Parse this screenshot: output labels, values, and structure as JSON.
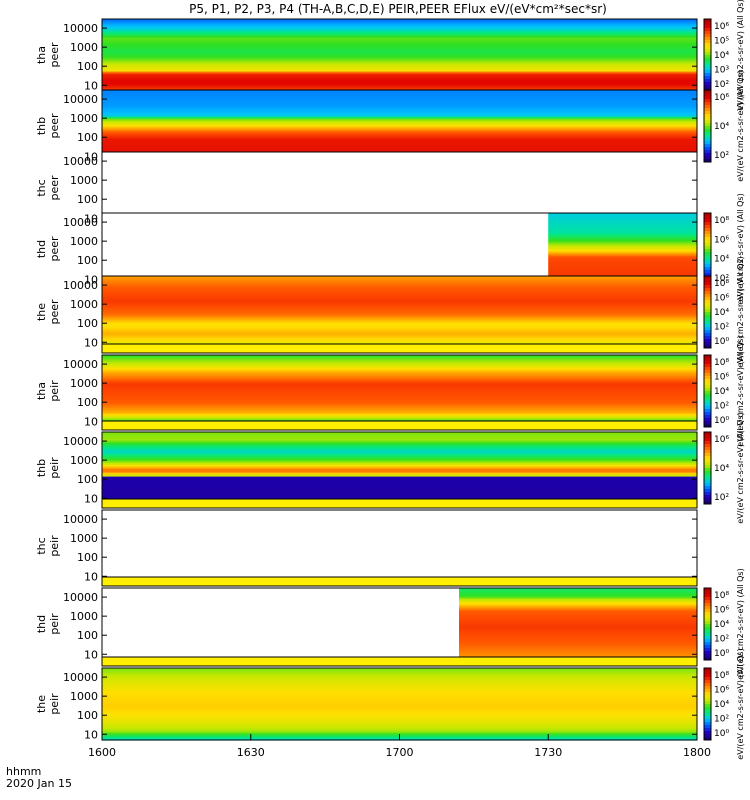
{
  "chart_data": {
    "type": "heatmap",
    "title": "P5, P1, P2, P3, P4 (TH-A,B,C,D,E) PEIR,PEER EFlux eV/(eV*cm²*sec*sr)",
    "x_axis": {
      "ticks": [
        "1600",
        "1630",
        "1700",
        "1730",
        "1800"
      ],
      "range": [
        "1600",
        "1800"
      ],
      "label_line1": "hhmm",
      "label_line2": "2020 Jan 15"
    },
    "y_axis": {
      "scale": "log",
      "range": [
        5,
        30000
      ],
      "ticks": [
        "10",
        "100",
        "1000",
        "10000"
      ]
    },
    "panels": [
      {
        "label_top": "tha",
        "label_bottom": "peer",
        "has_data": true,
        "data_start": 0.0,
        "yellow_band": false,
        "colorbar": {
          "ticks": [
            "10⁶",
            "10⁵",
            "10⁴",
            "10³",
            "10²"
          ],
          "label": "eV/(eV cm2-s-sr-eV) (All Qs)"
        },
        "profile": [
          [
            5,
            0.82
          ],
          [
            12,
            0.9
          ],
          [
            20,
            0.9
          ],
          [
            45,
            0.86
          ],
          [
            60,
            0.62
          ],
          [
            140,
            0.55
          ],
          [
            300,
            0.46
          ],
          [
            600,
            0.42
          ],
          [
            3000,
            0.48
          ],
          [
            10000,
            0.3
          ],
          [
            30000,
            0.2
          ]
        ]
      },
      {
        "label_top": "thb",
        "label_bottom": "peer",
        "has_data": true,
        "data_start": 0.0,
        "yellow_band": false,
        "colorbar": {
          "ticks": [
            "10⁶",
            "10⁴",
            "10²"
          ],
          "label": "eV/(eV cm2-s-sr-eV) (All Qs)"
        },
        "profile": [
          [
            5,
            0.9
          ],
          [
            80,
            0.88
          ],
          [
            200,
            0.8
          ],
          [
            450,
            0.62
          ],
          [
            900,
            0.5
          ],
          [
            1500,
            0.28
          ],
          [
            5000,
            0.24
          ],
          [
            30000,
            0.22
          ]
        ]
      },
      {
        "label_top": "thc",
        "label_bottom": "peer",
        "has_data": false,
        "data_start": 1.0,
        "yellow_band": false,
        "colorbar": null,
        "profile": []
      },
      {
        "label_top": "thd",
        "label_bottom": "peer",
        "has_data": true,
        "data_start": 0.75,
        "yellow_band": false,
        "colorbar": {
          "ticks": [
            "10⁸",
            "10⁶",
            "10⁴",
            "10²"
          ],
          "label": "eV/(eV cm2-s-sr-eV) (All Qs)"
        },
        "profile": [
          [
            5,
            0.85
          ],
          [
            150,
            0.82
          ],
          [
            400,
            0.6
          ],
          [
            1200,
            0.45
          ],
          [
            3000,
            0.35
          ],
          [
            30000,
            0.3
          ]
        ]
      },
      {
        "label_top": "the",
        "label_bottom": "peer",
        "has_data": true,
        "data_start": 0.0,
        "yellow_band": false,
        "colorbar": {
          "ticks": [
            "10⁸",
            "10⁶",
            "10⁴",
            "10²",
            "10⁰"
          ],
          "label": "eV/(eV cm2-s-sr-eV) (All Qs)"
        },
        "profile": [
          [
            5,
            0.55
          ],
          [
            30,
            0.7
          ],
          [
            90,
            0.62
          ],
          [
            300,
            0.78
          ],
          [
            1500,
            0.84
          ],
          [
            8000,
            0.8
          ],
          [
            30000,
            0.72
          ]
        ]
      },
      {
        "label_top": "tha",
        "label_bottom": "peir",
        "has_data": true,
        "data_start": 0.0,
        "yellow_band": true,
        "colorbar": {
          "ticks": [
            "10⁸",
            "10⁶",
            "10⁴",
            "10²",
            "10⁰"
          ],
          "label": "eV/(eV cm2-s-sr-eV) (All Qs)"
        },
        "profile": [
          [
            5,
            0.3
          ],
          [
            12,
            0.48
          ],
          [
            30,
            0.7
          ],
          [
            100,
            0.8
          ],
          [
            1000,
            0.84
          ],
          [
            4000,
            0.7
          ],
          [
            10000,
            0.56
          ],
          [
            30000,
            0.45
          ]
        ]
      },
      {
        "label_top": "thb",
        "label_bottom": "peir",
        "has_data": true,
        "data_start": 0.0,
        "yellow_band": true,
        "colorbar": {
          "ticks": [
            "10⁶",
            "10⁴",
            "10²"
          ],
          "label": "eV/(eV cm2-s-sr-eV) (All Qs)"
        },
        "profile": [
          [
            5,
            0.05
          ],
          [
            130,
            0.06
          ],
          [
            160,
            0.55
          ],
          [
            300,
            0.8
          ],
          [
            700,
            0.55
          ],
          [
            1200,
            0.45
          ],
          [
            3000,
            0.32
          ],
          [
            6000,
            0.4
          ],
          [
            12000,
            0.52
          ],
          [
            30000,
            0.5
          ]
        ]
      },
      {
        "label_top": "thc",
        "label_bottom": "peir",
        "has_data": false,
        "data_start": 1.0,
        "yellow_band": true,
        "colorbar": null,
        "profile": []
      },
      {
        "label_top": "thd",
        "label_bottom": "peir",
        "has_data": true,
        "data_start": 0.6,
        "yellow_band": true,
        "colorbar": {
          "ticks": [
            "10⁸",
            "10⁶",
            "10⁴",
            "10²",
            "10⁰"
          ],
          "label": "eV/(eV cm2-s-sr-eV) (All Qs)"
        },
        "profile": [
          [
            5,
            0.72
          ],
          [
            40,
            0.8
          ],
          [
            300,
            0.84
          ],
          [
            2000,
            0.8
          ],
          [
            6000,
            0.6
          ],
          [
            12000,
            0.45
          ],
          [
            30000,
            0.4
          ]
        ]
      },
      {
        "label_top": "the",
        "label_bottom": "peir",
        "has_data": true,
        "data_start": 0.0,
        "yellow_band": true,
        "colorbar": {
          "ticks": [
            "10⁸",
            "10⁶",
            "10⁴",
            "10²",
            "10⁰"
          ],
          "label": "eV/(eV cm2-s-sr-eV) (All Qs)"
        },
        "profile": [
          [
            5,
            0.3
          ],
          [
            15,
            0.52
          ],
          [
            80,
            0.62
          ],
          [
            300,
            0.66
          ],
          [
            1500,
            0.64
          ],
          [
            6000,
            0.58
          ],
          [
            30000,
            0.5
          ]
        ]
      }
    ]
  }
}
